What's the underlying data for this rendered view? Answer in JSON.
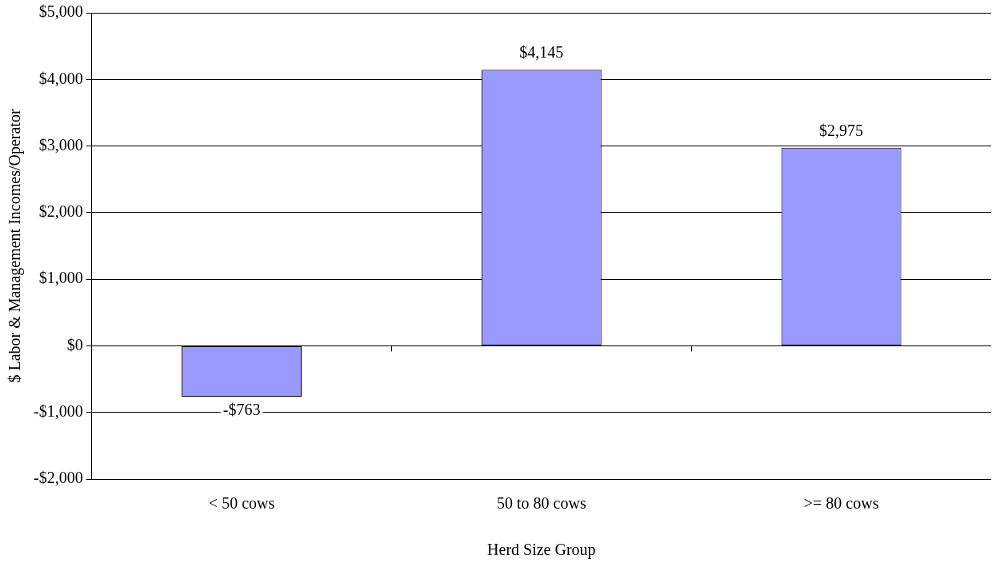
{
  "chart_data": {
    "type": "bar",
    "xlabel": "Herd Size Group",
    "ylabel": "$ Labor & Management Incomes/Operator",
    "categories": [
      "< 50 cows",
      "50 to 80 cows",
      ">= 80 cows"
    ],
    "values": [
      -763,
      4145,
      2975
    ],
    "color": "#9999ff",
    "value_labels": [
      "-$763",
      "$4,145",
      "$2,975"
    ],
    "ylim": [
      -2000,
      5000
    ],
    "yticks": [
      {
        "value": -2000,
        "label": "-$2,000"
      },
      {
        "value": -1000,
        "label": "-$1,000"
      },
      {
        "value": 0,
        "label": "$0"
      },
      {
        "value": 1000,
        "label": "$1,000"
      },
      {
        "value": 2000,
        "label": "$2,000"
      },
      {
        "value": 3000,
        "label": "$3,000"
      },
      {
        "value": 4000,
        "label": "$4,000"
      },
      {
        "value": 5000,
        "label": "$5,000"
      }
    ],
    "grid": "y",
    "legend": false
  }
}
